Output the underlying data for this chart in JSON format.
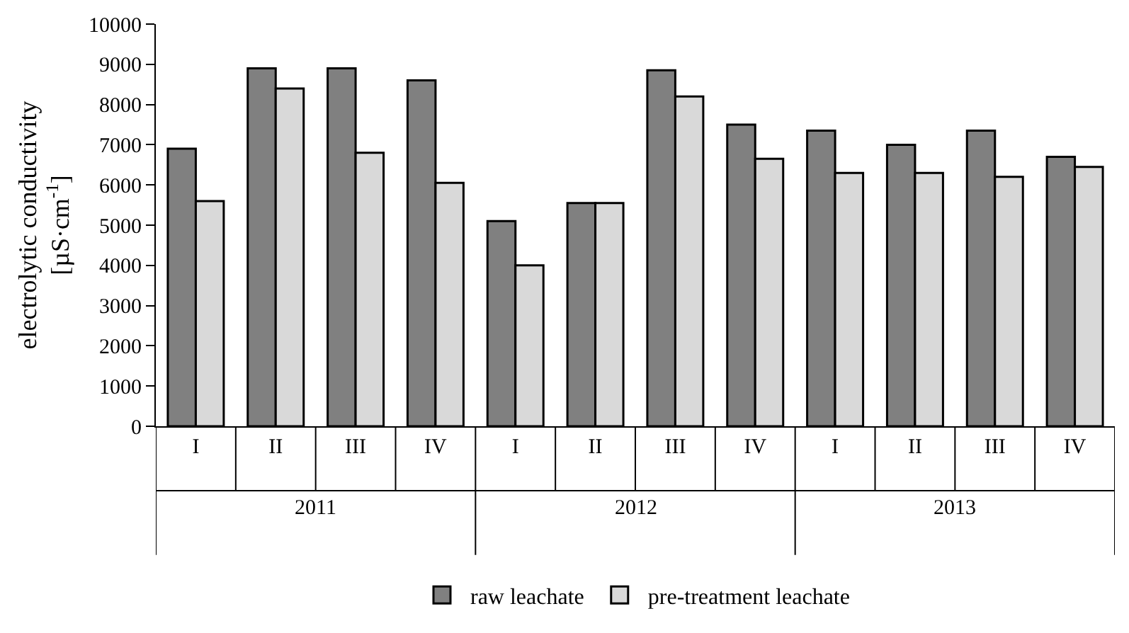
{
  "chart_data": {
    "type": "bar",
    "ylabel": "electrolytic conductivity [µS·cm$^{-1}$]",
    "categories": [
      "I",
      "II",
      "III",
      "IV",
      "I",
      "II",
      "III",
      "IV",
      "I",
      "II",
      "III",
      "IV"
    ],
    "series": [
      {
        "name": "raw leachate",
        "color": "#808080",
        "values": [
          6900,
          8900,
          8900,
          8600,
          5100,
          5550,
          8850,
          7500,
          7350,
          7000,
          7350,
          6700
        ]
      },
      {
        "name": "pre-treatment leachate",
        "color": "#d9d9d9",
        "values": [
          5600,
          8400,
          6800,
          6050,
          4000,
          5550,
          8200,
          6650,
          6300,
          6300,
          6200,
          6450
        ]
      }
    ],
    "annotations": [
      "2011",
      "2012",
      "2013"
    ],
    "ylim": [
      0,
      10000
    ],
    "yticks": [
      0,
      1000,
      2000,
      3000,
      4000,
      5000,
      6000,
      7000,
      8000,
      9000,
      10000
    ],
    "grid": false,
    "legend": "bottom"
  }
}
